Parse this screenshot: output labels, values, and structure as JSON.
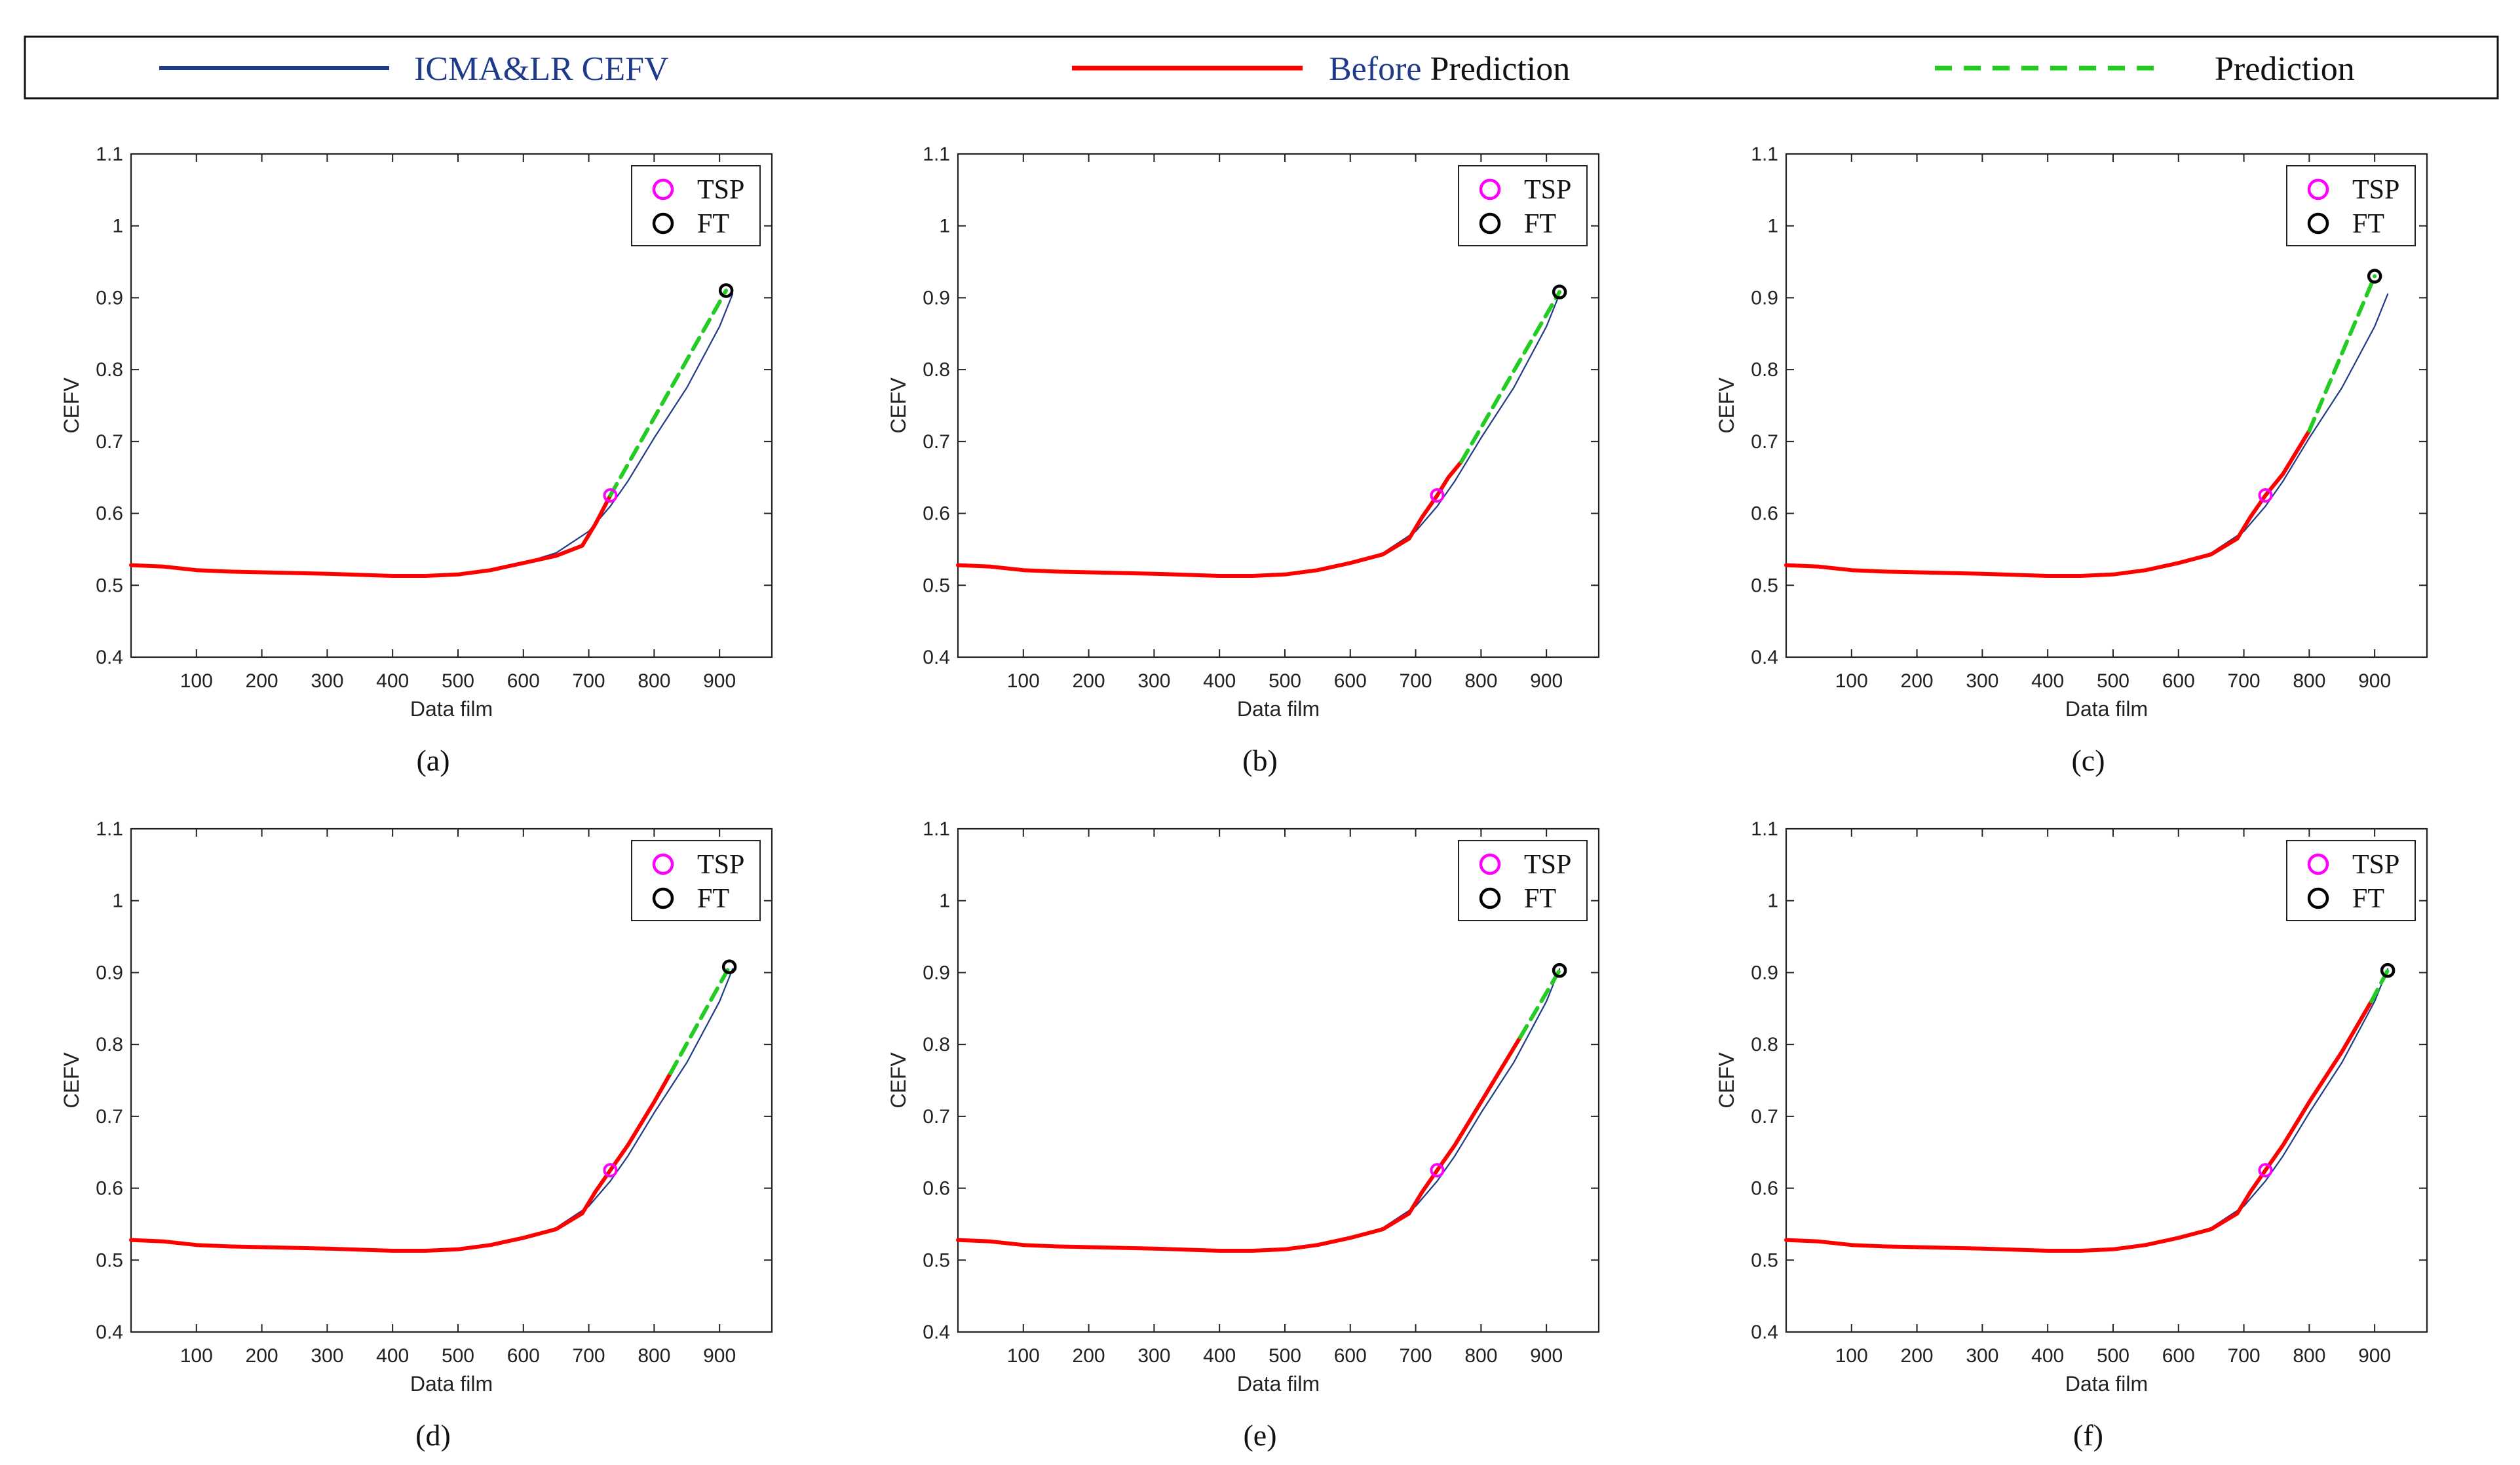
{
  "legend": {
    "items": [
      {
        "label": "ICMA&LR CEFV",
        "color": "#1f3a8a",
        "style": "solid"
      },
      {
        "label_part1": "Before",
        "label_part2": " Prediction",
        "part1_color": "#1f3a8a",
        "part2_color": "#111111",
        "color": "#ff0000",
        "style": "solid"
      },
      {
        "label": "Prediction",
        "color": "#22cc22",
        "style": "dashed"
      }
    ]
  },
  "colors": {
    "icma": "#1f3a8a",
    "before": "#ff0000",
    "prediction": "#22cc22",
    "tsp": "#ff00ff",
    "ft": "#000000"
  },
  "chart_data": [
    {
      "type": "line",
      "caption": "(a)",
      "xlabel": "Data film",
      "ylabel": "CEFV",
      "xlim": [
        0,
        980
      ],
      "ylim": [
        0.4,
        1.1
      ],
      "xticks": [
        100,
        200,
        300,
        400,
        500,
        600,
        700,
        800,
        900
      ],
      "yticks": [
        0.4,
        0.5,
        0.6,
        0.7,
        0.8,
        0.9,
        1,
        1.1
      ],
      "inner_legend": [
        "TSP",
        "FT"
      ],
      "series": [
        {
          "name": "ICMA&LR CEFV",
          "x": [
            0,
            50,
            100,
            150,
            200,
            300,
            400,
            450,
            500,
            550,
            600,
            650,
            700,
            733,
            760,
            800,
            850,
            900,
            920
          ],
          "y": [
            0.528,
            0.526,
            0.521,
            0.519,
            0.518,
            0.516,
            0.513,
            0.513,
            0.515,
            0.521,
            0.531,
            0.545,
            0.575,
            0.61,
            0.645,
            0.705,
            0.775,
            0.86,
            0.905
          ]
        },
        {
          "name": "Before Prediction",
          "x": [
            0,
            50,
            100,
            150,
            200,
            300,
            400,
            450,
            500,
            550,
            600,
            650,
            690,
            710,
            733
          ],
          "y": [
            0.528,
            0.526,
            0.521,
            0.519,
            0.518,
            0.516,
            0.513,
            0.513,
            0.515,
            0.521,
            0.531,
            0.541,
            0.555,
            0.585,
            0.625
          ]
        },
        {
          "name": "Prediction",
          "x": [
            733,
            910
          ],
          "y": [
            0.625,
            0.91
          ]
        }
      ],
      "tsp": {
        "x": 733,
        "y": 0.625
      },
      "ft": {
        "x": 910,
        "y": 0.91
      }
    },
    {
      "type": "line",
      "caption": "(b)",
      "xlabel": "Data film",
      "ylabel": "CEFV",
      "xlim": [
        0,
        980
      ],
      "ylim": [
        0.4,
        1.1
      ],
      "xticks": [
        100,
        200,
        300,
        400,
        500,
        600,
        700,
        800,
        900
      ],
      "yticks": [
        0.4,
        0.5,
        0.6,
        0.7,
        0.8,
        0.9,
        1,
        1.1
      ],
      "inner_legend": [
        "TSP",
        "FT"
      ],
      "series": [
        {
          "name": "ICMA&LR CEFV",
          "x": [
            0,
            50,
            100,
            150,
            200,
            300,
            400,
            450,
            500,
            550,
            600,
            650,
            700,
            733,
            760,
            800,
            850,
            900,
            920
          ],
          "y": [
            0.528,
            0.526,
            0.521,
            0.519,
            0.518,
            0.516,
            0.513,
            0.513,
            0.515,
            0.521,
            0.531,
            0.545,
            0.575,
            0.61,
            0.645,
            0.705,
            0.775,
            0.86,
            0.905
          ]
        },
        {
          "name": "Before Prediction",
          "x": [
            0,
            50,
            100,
            150,
            200,
            300,
            400,
            450,
            500,
            550,
            600,
            650,
            690,
            710,
            733,
            750,
            770
          ],
          "y": [
            0.528,
            0.526,
            0.521,
            0.519,
            0.518,
            0.516,
            0.513,
            0.513,
            0.515,
            0.521,
            0.531,
            0.543,
            0.565,
            0.595,
            0.625,
            0.65,
            0.672
          ]
        },
        {
          "name": "Prediction",
          "x": [
            770,
            920
          ],
          "y": [
            0.672,
            0.908
          ]
        }
      ],
      "tsp": {
        "x": 733,
        "y": 0.625
      },
      "ft": {
        "x": 920,
        "y": 0.908
      }
    },
    {
      "type": "line",
      "caption": "(c)",
      "xlabel": "Data film",
      "ylabel": "CEFV",
      "xlim": [
        0,
        980
      ],
      "ylim": [
        0.4,
        1.1
      ],
      "xticks": [
        100,
        200,
        300,
        400,
        500,
        600,
        700,
        800,
        900
      ],
      "yticks": [
        0.4,
        0.5,
        0.6,
        0.7,
        0.8,
        0.9,
        1,
        1.1
      ],
      "inner_legend": [
        "TSP",
        "FT"
      ],
      "series": [
        {
          "name": "ICMA&LR CEFV",
          "x": [
            0,
            50,
            100,
            150,
            200,
            300,
            400,
            450,
            500,
            550,
            600,
            650,
            700,
            733,
            760,
            800,
            850,
            900,
            920
          ],
          "y": [
            0.528,
            0.526,
            0.521,
            0.519,
            0.518,
            0.516,
            0.513,
            0.513,
            0.515,
            0.521,
            0.531,
            0.545,
            0.575,
            0.61,
            0.645,
            0.705,
            0.775,
            0.86,
            0.905
          ]
        },
        {
          "name": "Before Prediction",
          "x": [
            0,
            50,
            100,
            150,
            200,
            300,
            400,
            450,
            500,
            550,
            600,
            650,
            690,
            710,
            733,
            760,
            800
          ],
          "y": [
            0.528,
            0.526,
            0.521,
            0.519,
            0.518,
            0.516,
            0.513,
            0.513,
            0.515,
            0.521,
            0.531,
            0.543,
            0.565,
            0.595,
            0.625,
            0.655,
            0.715
          ]
        },
        {
          "name": "Prediction",
          "x": [
            800,
            900
          ],
          "y": [
            0.715,
            0.93
          ]
        }
      ],
      "tsp": {
        "x": 733,
        "y": 0.625
      },
      "ft": {
        "x": 900,
        "y": 0.93
      }
    },
    {
      "type": "line",
      "caption": "(d)",
      "xlabel": "Data film",
      "ylabel": "CEFV",
      "xlim": [
        0,
        980
      ],
      "ylim": [
        0.4,
        1.1
      ],
      "xticks": [
        100,
        200,
        300,
        400,
        500,
        600,
        700,
        800,
        900
      ],
      "yticks": [
        0.4,
        0.5,
        0.6,
        0.7,
        0.8,
        0.9,
        1,
        1.1
      ],
      "inner_legend": [
        "TSP",
        "FT"
      ],
      "series": [
        {
          "name": "ICMA&LR CEFV",
          "x": [
            0,
            50,
            100,
            150,
            200,
            300,
            400,
            450,
            500,
            550,
            600,
            650,
            700,
            733,
            760,
            800,
            850,
            900,
            920
          ],
          "y": [
            0.528,
            0.526,
            0.521,
            0.519,
            0.518,
            0.516,
            0.513,
            0.513,
            0.515,
            0.521,
            0.531,
            0.545,
            0.575,
            0.61,
            0.645,
            0.705,
            0.775,
            0.86,
            0.905
          ]
        },
        {
          "name": "Before Prediction",
          "x": [
            0,
            50,
            100,
            150,
            200,
            300,
            400,
            450,
            500,
            550,
            600,
            650,
            690,
            710,
            733,
            760,
            800,
            825
          ],
          "y": [
            0.528,
            0.526,
            0.521,
            0.519,
            0.518,
            0.516,
            0.513,
            0.513,
            0.515,
            0.521,
            0.531,
            0.543,
            0.565,
            0.595,
            0.625,
            0.66,
            0.72,
            0.76
          ]
        },
        {
          "name": "Prediction",
          "x": [
            825,
            915
          ],
          "y": [
            0.76,
            0.908
          ]
        }
      ],
      "tsp": {
        "x": 733,
        "y": 0.625
      },
      "ft": {
        "x": 915,
        "y": 0.908
      }
    },
    {
      "type": "line",
      "caption": "(e)",
      "xlabel": "Data film",
      "ylabel": "CEFV",
      "xlim": [
        0,
        980
      ],
      "ylim": [
        0.4,
        1.1
      ],
      "xticks": [
        100,
        200,
        300,
        400,
        500,
        600,
        700,
        800,
        900
      ],
      "yticks": [
        0.4,
        0.5,
        0.6,
        0.7,
        0.8,
        0.9,
        1,
        1.1
      ],
      "inner_legend": [
        "TSP",
        "FT"
      ],
      "series": [
        {
          "name": "ICMA&LR CEFV",
          "x": [
            0,
            50,
            100,
            150,
            200,
            300,
            400,
            450,
            500,
            550,
            600,
            650,
            700,
            733,
            760,
            800,
            850,
            900,
            920
          ],
          "y": [
            0.528,
            0.526,
            0.521,
            0.519,
            0.518,
            0.516,
            0.513,
            0.513,
            0.515,
            0.521,
            0.531,
            0.545,
            0.575,
            0.61,
            0.645,
            0.705,
            0.775,
            0.86,
            0.905
          ]
        },
        {
          "name": "Before Prediction",
          "x": [
            0,
            50,
            100,
            150,
            200,
            300,
            400,
            450,
            500,
            550,
            600,
            650,
            690,
            710,
            733,
            760,
            800,
            860
          ],
          "y": [
            0.528,
            0.526,
            0.521,
            0.519,
            0.518,
            0.516,
            0.513,
            0.513,
            0.515,
            0.521,
            0.531,
            0.543,
            0.565,
            0.595,
            0.625,
            0.66,
            0.72,
            0.81
          ]
        },
        {
          "name": "Prediction",
          "x": [
            860,
            920
          ],
          "y": [
            0.81,
            0.903
          ]
        }
      ],
      "tsp": {
        "x": 733,
        "y": 0.625
      },
      "ft": {
        "x": 920,
        "y": 0.903
      }
    },
    {
      "type": "line",
      "caption": "(f)",
      "xlabel": "Data film",
      "ylabel": "CEFV",
      "xlim": [
        0,
        980
      ],
      "ylim": [
        0.4,
        1.1
      ],
      "xticks": [
        100,
        200,
        300,
        400,
        500,
        600,
        700,
        800,
        900
      ],
      "yticks": [
        0.4,
        0.5,
        0.6,
        0.7,
        0.8,
        0.9,
        1,
        1.1
      ],
      "inner_legend": [
        "TSP",
        "FT"
      ],
      "series": [
        {
          "name": "ICMA&LR CEFV",
          "x": [
            0,
            50,
            100,
            150,
            200,
            300,
            400,
            450,
            500,
            550,
            600,
            650,
            700,
            733,
            760,
            800,
            850,
            900,
            920
          ],
          "y": [
            0.528,
            0.526,
            0.521,
            0.519,
            0.518,
            0.516,
            0.513,
            0.513,
            0.515,
            0.521,
            0.531,
            0.545,
            0.575,
            0.61,
            0.645,
            0.705,
            0.775,
            0.86,
            0.905
          ]
        },
        {
          "name": "Before Prediction",
          "x": [
            0,
            50,
            100,
            150,
            200,
            300,
            400,
            450,
            500,
            550,
            600,
            650,
            690,
            710,
            733,
            760,
            800,
            850,
            895
          ],
          "y": [
            0.528,
            0.526,
            0.521,
            0.519,
            0.518,
            0.516,
            0.513,
            0.513,
            0.515,
            0.521,
            0.531,
            0.543,
            0.565,
            0.595,
            0.625,
            0.66,
            0.72,
            0.79,
            0.86
          ]
        },
        {
          "name": "Prediction",
          "x": [
            895,
            920
          ],
          "y": [
            0.86,
            0.903
          ]
        }
      ],
      "tsp": {
        "x": 733,
        "y": 0.625
      },
      "ft": {
        "x": 920,
        "y": 0.903
      }
    }
  ]
}
